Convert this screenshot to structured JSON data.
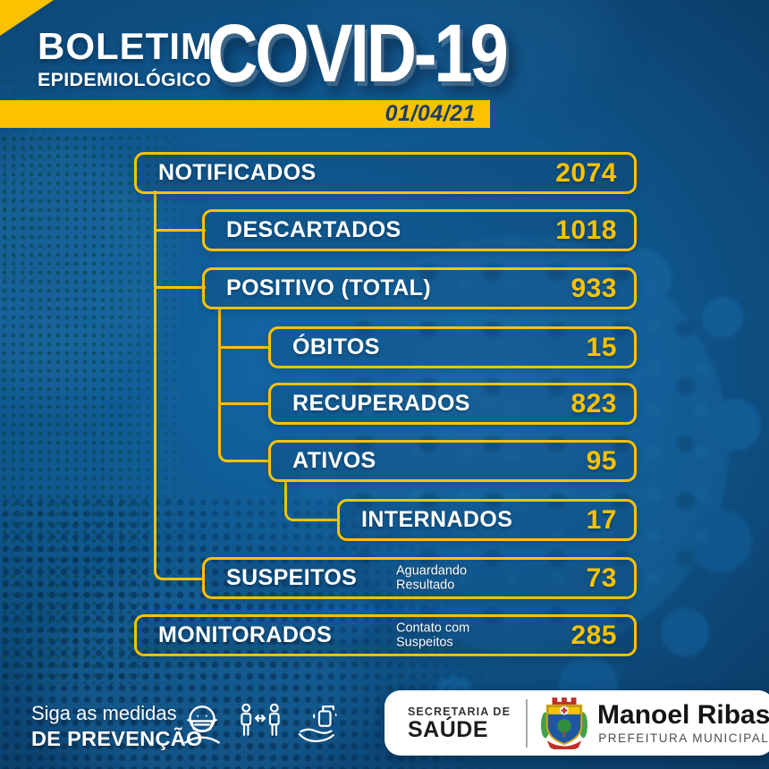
{
  "header": {
    "kicker_line1": "BOLETIM",
    "kicker_line2": "EPIDEMIOLÓGICO",
    "title": "COVID-19",
    "date": "01/04/21"
  },
  "stats": [
    {
      "label": "NOTIFICADOS",
      "value": "2074",
      "sub": ""
    },
    {
      "label": "DESCARTADOS",
      "value": "1018",
      "sub": ""
    },
    {
      "label": "POSITIVO (TOTAL)",
      "value": "933",
      "sub": ""
    },
    {
      "label": "ÓBITOS",
      "value": "15",
      "sub": ""
    },
    {
      "label": "RECUPERADOS",
      "value": "823",
      "sub": ""
    },
    {
      "label": "ATIVOS",
      "value": "95",
      "sub": ""
    },
    {
      "label": "INTERNADOS",
      "value": "17",
      "sub": ""
    },
    {
      "label": "SUSPEITOS",
      "value": "73",
      "sub": "Aguardando\nResultado"
    },
    {
      "label": "MONITORADOS",
      "value": "285",
      "sub": "Contato com\nSuspeitos"
    }
  ],
  "footer": {
    "prevention_line1": "Siga as medidas",
    "prevention_line2": "DE PREVENÇÃO",
    "icons": [
      "mask-face-icon",
      "social-distance-icon",
      "hand-wash-icon"
    ],
    "secretaria_line1": "SECRETARIA DE",
    "secretaria_line2": "SAÚDE",
    "city_name": "Manoel Ribas",
    "city_subtitle": "PREFEITURA MUNICIPAL"
  },
  "colors": {
    "accent_yellow": "#fcc200",
    "background_navy": "#0b3a63",
    "background_blue": "#1266a4",
    "date_text_navy": "#1c3f66",
    "text_white": "#ffffff"
  }
}
